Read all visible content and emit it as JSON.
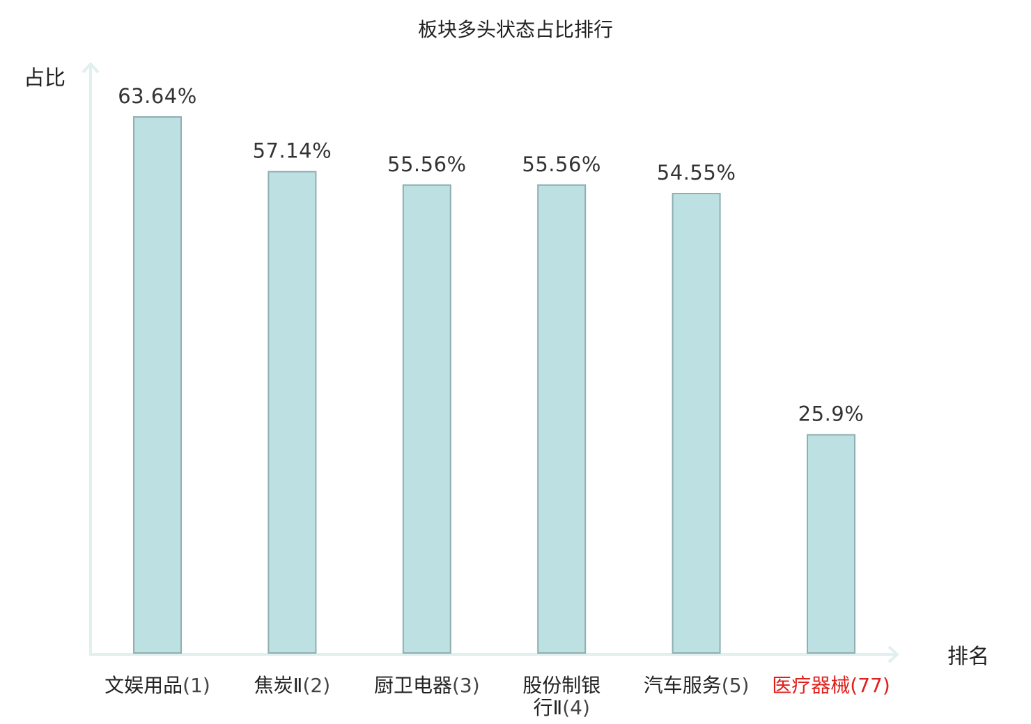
{
  "chart_data": {
    "type": "bar",
    "title": "板块多头状态占比排行",
    "ylabel": "占比",
    "xlabel": "排名",
    "ylim": [
      0,
      70
    ],
    "grid": false,
    "categories": [
      {
        "name": "文娱用品",
        "rank": "(1)",
        "highlight": false
      },
      {
        "name": "焦炭Ⅱ",
        "rank": "(2)",
        "highlight": false
      },
      {
        "name": "厨卫电器",
        "rank": "(3)",
        "highlight": false
      },
      {
        "name": "股份制银行Ⅱ",
        "rank": "(4)",
        "highlight": false
      },
      {
        "name": "汽车服务",
        "rank": "(5)",
        "highlight": false
      },
      {
        "name": "医疗器械",
        "rank": "(77)",
        "highlight": true
      }
    ],
    "values": [
      63.64,
      57.14,
      55.56,
      55.56,
      54.55,
      25.9
    ],
    "value_labels": [
      "63.64%",
      "57.14%",
      "55.56%",
      "55.56%",
      "54.55%",
      "25.9%"
    ],
    "colors": {
      "bar_fill": "#bde0e2",
      "bar_stroke": "#8faeb0",
      "axis": "#dff0ee",
      "label_normal": "#222222",
      "label_highlight": "#e0201b",
      "rank_normal": "#444444"
    }
  }
}
